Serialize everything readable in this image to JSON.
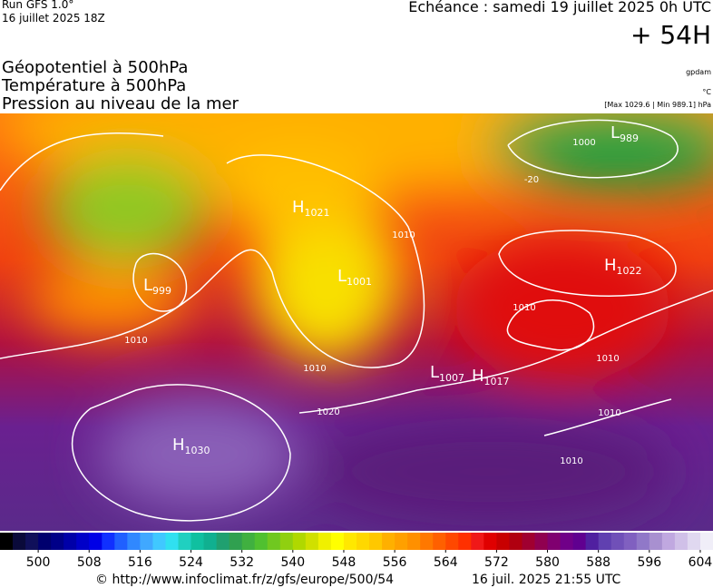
{
  "header": {
    "run": "Run GFS 1.0°",
    "date": "16 juillet 2025 18Z",
    "valid": "Echéance : samedi 19 juillet 2025 0h UTC",
    "lead": "+ 54H"
  },
  "titles": [
    "Géopotentiel à 500hPa",
    "Température à 500hPa",
    "Pression au niveau de la mer"
  ],
  "units": {
    "geopotential": "gpdam",
    "temperature": "°C",
    "pressure": "[Max 1029.6 | Min 989.1] hPa"
  },
  "centers": [
    {
      "letter": "H",
      "value": 1021
    },
    {
      "letter": "L",
      "value": 1001
    },
    {
      "letter": "L",
      "value": 999
    },
    {
      "letter": "H",
      "value": 1022
    },
    {
      "letter": "L",
      "value": 989
    },
    {
      "letter": "L",
      "value": 1007
    },
    {
      "letter": "H",
      "value": 1017
    },
    {
      "letter": "H",
      "value": 1030
    }
  ],
  "contour_labels": [
    1000,
    1010,
    1010,
    1010,
    1020,
    1010,
    1010,
    1010,
    1010,
    -20
  ],
  "colorbar": {
    "lim": [
      494,
      606
    ],
    "ticks": [
      500,
      508,
      516,
      524,
      532,
      540,
      548,
      556,
      564,
      572,
      580,
      588,
      596,
      604
    ],
    "colors": [
      "#000000",
      "#0a0a3a",
      "#10105a",
      "#00006e",
      "#000088",
      "#0000a8",
      "#0000c8",
      "#0000e6",
      "#1030ff",
      "#2060ff",
      "#3088ff",
      "#40a8ff",
      "#40c8ff",
      "#30e0f0",
      "#20d0c0",
      "#10c0a0",
      "#10b090",
      "#20a070",
      "#30a050",
      "#40b040",
      "#50c030",
      "#70c820",
      "#90d010",
      "#b0d800",
      "#d0e000",
      "#f0f000",
      "#ffff00",
      "#ffe800",
      "#ffd800",
      "#ffc800",
      "#ffb000",
      "#ffa000",
      "#ff9000",
      "#ff7800",
      "#ff6000",
      "#ff4800",
      "#ff3000",
      "#f01818",
      "#e00000",
      "#c80000",
      "#b00010",
      "#a00030",
      "#900050",
      "#800070",
      "#700088",
      "#600090",
      "#5020a0",
      "#6040b0",
      "#7050b8",
      "#8060c0",
      "#9078c8",
      "#a890d0",
      "#c0a8e0",
      "#d0c0e8",
      "#e0d8f0",
      "#f0eef8"
    ]
  },
  "footer": {
    "source": "© http://www.infoclimat.fr/z/gfs/europe/500/54",
    "timestamp": "16 juil. 2025 21:55 UTC"
  }
}
